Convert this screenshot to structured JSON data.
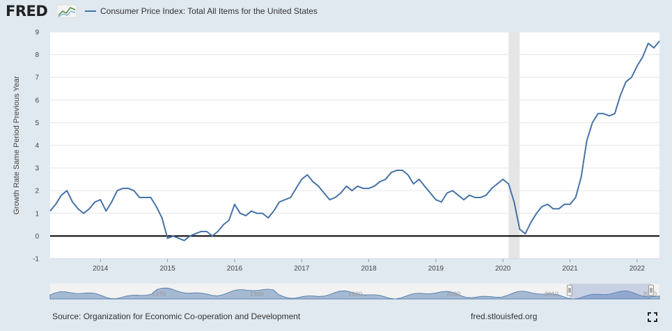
{
  "brand": {
    "logo_text": "FRED",
    "site": "fred.stlouisfed.org"
  },
  "legend": {
    "series_name": "Consumer Price Index: Total All Items for the United States"
  },
  "footer": {
    "source": "Source: Organization for Economic Co-operation and Development"
  },
  "navigator": {
    "decade_labels": [
      "1970",
      "1980",
      "1990",
      "2000",
      "2010",
      "2020"
    ]
  },
  "colors": {
    "line": "#4572a7",
    "background": "#e1e9f0",
    "plot": "#ffffff",
    "recession": "#e5e5e5",
    "zero_line": "#000000"
  },
  "icons": {
    "fullscreen": "fullscreen-icon",
    "logo_graph": "chart-logo-icon"
  },
  "chart_data": {
    "type": "line",
    "title": "",
    "xlabel": "",
    "ylabel": "Growth Rate Same Period Previous Year",
    "ylim": [
      -1,
      9
    ],
    "yticks": [
      -1,
      0,
      1,
      2,
      3,
      4,
      5,
      6,
      7,
      8,
      9
    ],
    "xlim": [
      "2013-04",
      "2022-05"
    ],
    "xticks": [
      "2014",
      "2015",
      "2016",
      "2017",
      "2018",
      "2019",
      "2020",
      "2021",
      "2022"
    ],
    "grid": true,
    "legend_position": "top-left",
    "recession_band": [
      "2020-02",
      "2020-04"
    ],
    "series": [
      {
        "name": "Consumer Price Index: Total All Items for the United States",
        "x": [
          "2013-04",
          "2013-05",
          "2013-06",
          "2013-07",
          "2013-08",
          "2013-09",
          "2013-10",
          "2013-11",
          "2013-12",
          "2014-01",
          "2014-02",
          "2014-03",
          "2014-04",
          "2014-05",
          "2014-06",
          "2014-07",
          "2014-08",
          "2014-09",
          "2014-10",
          "2014-11",
          "2014-12",
          "2015-01",
          "2015-02",
          "2015-03",
          "2015-04",
          "2015-05",
          "2015-06",
          "2015-07",
          "2015-08",
          "2015-09",
          "2015-10",
          "2015-11",
          "2015-12",
          "2016-01",
          "2016-02",
          "2016-03",
          "2016-04",
          "2016-05",
          "2016-06",
          "2016-07",
          "2016-08",
          "2016-09",
          "2016-10",
          "2016-11",
          "2016-12",
          "2017-01",
          "2017-02",
          "2017-03",
          "2017-04",
          "2017-05",
          "2017-06",
          "2017-07",
          "2017-08",
          "2017-09",
          "2017-10",
          "2017-11",
          "2017-12",
          "2018-01",
          "2018-02",
          "2018-03",
          "2018-04",
          "2018-05",
          "2018-06",
          "2018-07",
          "2018-08",
          "2018-09",
          "2018-10",
          "2018-11",
          "2018-12",
          "2019-01",
          "2019-02",
          "2019-03",
          "2019-04",
          "2019-05",
          "2019-06",
          "2019-07",
          "2019-08",
          "2019-09",
          "2019-10",
          "2019-11",
          "2019-12",
          "2020-01",
          "2020-02",
          "2020-03",
          "2020-04",
          "2020-05",
          "2020-06",
          "2020-07",
          "2020-08",
          "2020-09",
          "2020-10",
          "2020-11",
          "2020-12",
          "2021-01",
          "2021-02",
          "2021-03",
          "2021-04",
          "2021-05",
          "2021-06",
          "2021-07",
          "2021-08",
          "2021-09",
          "2021-10",
          "2021-11",
          "2021-12",
          "2022-01",
          "2022-02",
          "2022-03",
          "2022-04",
          "2022-05"
        ],
        "values": [
          1.1,
          1.4,
          1.8,
          2.0,
          1.5,
          1.2,
          1.0,
          1.2,
          1.5,
          1.6,
          1.1,
          1.5,
          2.0,
          2.1,
          2.1,
          2.0,
          1.7,
          1.7,
          1.7,
          1.3,
          0.8,
          -0.1,
          0.0,
          -0.1,
          -0.2,
          0.0,
          0.1,
          0.2,
          0.2,
          0.0,
          0.2,
          0.5,
          0.7,
          1.4,
          1.0,
          0.9,
          1.1,
          1.0,
          1.0,
          0.8,
          1.1,
          1.5,
          1.6,
          1.7,
          2.1,
          2.5,
          2.7,
          2.4,
          2.2,
          1.9,
          1.6,
          1.7,
          1.9,
          2.2,
          2.0,
          2.2,
          2.1,
          2.1,
          2.2,
          2.4,
          2.5,
          2.8,
          2.9,
          2.9,
          2.7,
          2.3,
          2.5,
          2.2,
          1.9,
          1.6,
          1.5,
          1.9,
          2.0,
          1.8,
          1.6,
          1.8,
          1.7,
          1.7,
          1.8,
          2.1,
          2.3,
          2.5,
          2.3,
          1.5,
          0.3,
          0.1,
          0.6,
          1.0,
          1.3,
          1.4,
          1.2,
          1.2,
          1.4,
          1.4,
          1.7,
          2.6,
          4.2,
          5.0,
          5.4,
          5.4,
          5.3,
          5.4,
          6.2,
          6.8,
          7.0,
          7.5,
          7.9,
          8.5,
          8.3,
          8.6
        ]
      }
    ]
  }
}
